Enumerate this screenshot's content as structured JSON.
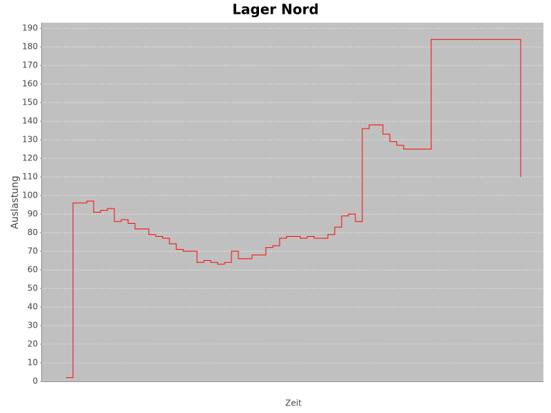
{
  "chart_data": {
    "type": "step",
    "title": "Lager Nord",
    "x_label": "Zeit",
    "y_label": "Auslastung",
    "categories": [
      null,
      null,
      null,
      null,
      null,
      null,
      null,
      null,
      null,
      null,
      null,
      null,
      null,
      null,
      null,
      null,
      null,
      null,
      null,
      null,
      null,
      null,
      null,
      null,
      null,
      null,
      null,
      null,
      null,
      null,
      null,
      null,
      null,
      null,
      null,
      null,
      null,
      null,
      null,
      null,
      null,
      null,
      null,
      null,
      null,
      null,
      null,
      null,
      null,
      null,
      null,
      null,
      null,
      null,
      null,
      null,
      null,
      null,
      null,
      null,
      null,
      null,
      null,
      null,
      null,
      null,
      null
    ],
    "values": [
      2,
      96,
      96,
      97,
      91,
      92,
      93,
      86,
      87,
      85,
      82,
      82,
      79,
      78,
      77,
      74,
      71,
      70,
      70,
      64,
      65,
      64,
      63,
      64,
      70,
      66,
      66,
      68,
      68,
      72,
      73,
      77,
      78,
      78,
      77,
      78,
      77,
      77,
      79,
      83,
      89,
      90,
      86,
      136,
      138,
      138,
      133,
      129,
      127,
      125,
      125,
      125,
      125,
      184,
      184,
      184,
      184,
      184,
      184,
      184,
      184,
      184,
      184,
      184,
      184,
      184,
      110
    ],
    "color": "#ff0000",
    "background": "#c0c0c0",
    "grid": true,
    "ylim": [
      0,
      193
    ],
    "yticks": [
      0,
      10,
      20,
      30,
      40,
      50,
      60,
      70,
      80,
      90,
      100,
      110,
      120,
      130,
      140,
      150,
      160,
      170,
      180,
      190
    ]
  }
}
